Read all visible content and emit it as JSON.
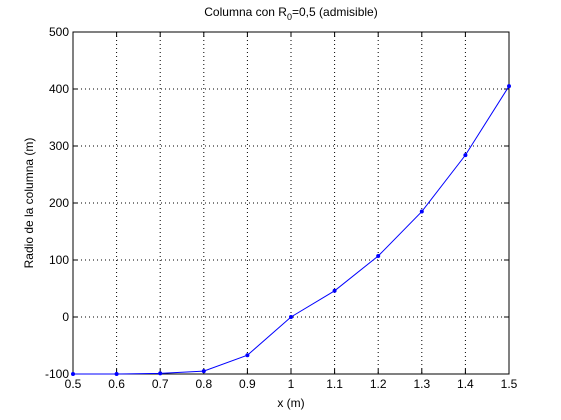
{
  "chart_data": {
    "type": "line",
    "title": [
      "Columna con R",
      "0",
      "=0,5 (admisible)"
    ],
    "x_label": "x (m)",
    "y_label": "Radio de la columna (m)",
    "x": [
      0.5,
      0.6,
      0.7,
      0.8,
      0.9,
      1,
      1.1,
      1.2,
      1.3,
      1.4,
      1.5
    ],
    "series": [
      {
        "color": "#0000ff",
        "values": [
          -100,
          -100,
          -99,
          -95,
          -67,
          0,
          46,
          107,
          185,
          284,
          405
        ]
      }
    ],
    "xlim": [
      0.5,
      1.5
    ],
    "xticks": [
      0.5,
      0.6,
      0.7,
      0.8,
      0.9,
      1,
      1.1,
      1.2,
      1.3,
      1.4,
      1.5
    ],
    "ylim": [
      -100,
      500
    ],
    "yticks": [
      -100,
      0,
      100,
      200,
      300,
      400,
      500
    ],
    "grid": true
  }
}
